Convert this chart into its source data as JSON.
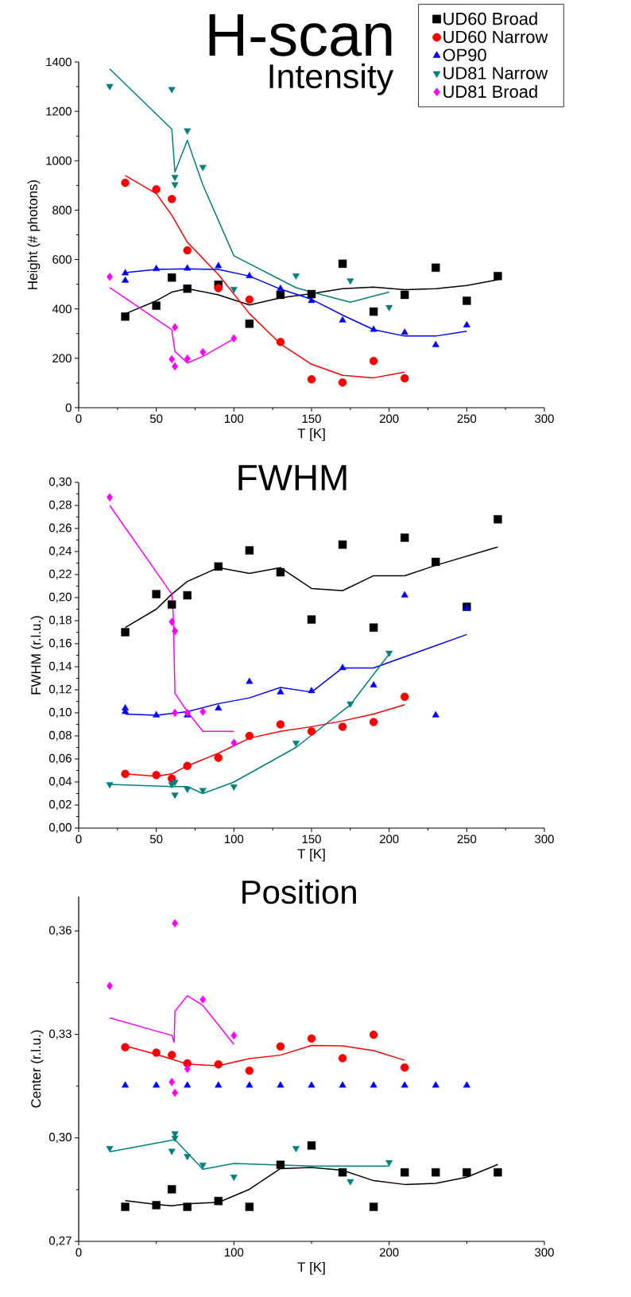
{
  "chart_data": [
    {
      "type": "scatter",
      "title": "H-scan",
      "subtitle": "Intensity",
      "xlabel": "T [K]",
      "ylabel": "Height (# photons)",
      "xlim": [
        0,
        300
      ],
      "ylim": [
        0,
        1400
      ],
      "xticks": [
        0,
        50,
        100,
        150,
        200,
        250,
        300
      ],
      "yticks": [
        0,
        200,
        400,
        600,
        800,
        1000,
        1200,
        1400
      ],
      "legend": "top right",
      "series": [
        {
          "name": "UD60 Broad",
          "color": "#000000",
          "marker": "square",
          "x": [
            30,
            50,
            60,
            70,
            90,
            110,
            130,
            150,
            170,
            190,
            210,
            230,
            250,
            270
          ],
          "values": [
            369,
            413,
            527,
            482,
            498,
            340,
            457,
            460,
            583,
            389,
            457,
            567,
            433,
            533
          ]
        },
        {
          "name": "UD60 Narrow",
          "color": "#ff0000",
          "marker": "circle",
          "x": [
            30,
            50,
            60,
            70,
            90,
            110,
            130,
            150,
            170,
            190,
            210
          ],
          "values": [
            911,
            884,
            845,
            637,
            484,
            438,
            266,
            115,
            102,
            189,
            119
          ]
        },
        {
          "name": "OP90",
          "color": "#0000ff",
          "marker": "triangle",
          "x": [
            30,
            30,
            50,
            70,
            90,
            110,
            130,
            150,
            170,
            190,
            210,
            230,
            250
          ],
          "values": [
            545,
            515,
            562,
            564,
            574,
            533,
            482,
            433,
            354,
            316,
            304,
            254,
            334
          ]
        },
        {
          "name": "UD81 Narrow",
          "color": "#008080",
          "marker": "triangle-down",
          "x": [
            20,
            60,
            62,
            62,
            70,
            80,
            100,
            140,
            175,
            200
          ],
          "values": [
            1302,
            1290,
            934,
            904,
            1122,
            974,
            480,
            535,
            515,
            407
          ]
        },
        {
          "name": "UD81 Broad",
          "color": "#ff00ff",
          "marker": "diamond",
          "x": [
            20,
            60,
            62,
            62,
            70,
            80,
            100
          ],
          "values": [
            530,
            196,
            326,
            167,
            199,
            225,
            281
          ]
        },
        {
          "type": "line",
          "color": "#000000",
          "marker": "none",
          "x": [
            30,
            50,
            60,
            70,
            90,
            110,
            130,
            150,
            170,
            190,
            210,
            230,
            250,
            270
          ],
          "values": [
            380,
            433,
            468,
            482,
            457,
            416,
            445,
            462,
            482,
            488,
            478,
            482,
            495,
            518
          ]
        },
        {
          "type": "line",
          "color": "#ff0000",
          "marker": "none",
          "x": [
            30,
            50,
            60,
            70,
            90,
            110,
            130,
            150,
            170,
            190,
            210
          ],
          "values": [
            940,
            867,
            779,
            670,
            539,
            381,
            258,
            176,
            131,
            121,
            144
          ]
        },
        {
          "type": "line",
          "color": "#0000ff",
          "marker": "none",
          "x": [
            30,
            50,
            70,
            90,
            110,
            130,
            150,
            170,
            190,
            210,
            230,
            250
          ],
          "values": [
            547,
            560,
            562,
            560,
            533,
            480,
            439,
            375,
            316,
            290,
            290,
            310
          ]
        },
        {
          "type": "line",
          "color": "#008080",
          "marker": "none",
          "x": [
            20,
            60,
            62,
            70,
            80,
            100,
            140,
            150,
            175,
            200
          ],
          "values": [
            1372,
            1128,
            954,
            1083,
            902,
            615,
            486,
            468,
            427,
            468
          ]
        },
        {
          "type": "line",
          "color": "#ff00ff",
          "marker": "none",
          "x": [
            20,
            60,
            62,
            70,
            80,
            100
          ],
          "values": [
            486,
            316,
            228,
            181,
            208,
            279
          ]
        }
      ]
    },
    {
      "type": "scatter",
      "title": "FWHM",
      "xlabel": "T [K]",
      "ylabel": "FWHM (r.l.u.)",
      "xlim": [
        0,
        300
      ],
      "ylim": [
        0,
        0.3
      ],
      "xticks": [
        0,
        50,
        100,
        150,
        200,
        250,
        300
      ],
      "yticks": [
        {
          "value": 0,
          "label": "0,00"
        },
        {
          "value": 0.02,
          "label": "0,02"
        },
        {
          "value": 0.04,
          "label": "0,04"
        },
        {
          "value": 0.06,
          "label": "0,06"
        },
        {
          "value": 0.08,
          "label": "0,08"
        },
        {
          "value": 0.1,
          "label": "0,10"
        },
        {
          "value": 0.12,
          "label": "0,12"
        },
        {
          "value": 0.14,
          "label": "0,14"
        },
        {
          "value": 0.16,
          "label": "0,16"
        },
        {
          "value": 0.18,
          "label": "0,18"
        },
        {
          "value": 0.2,
          "label": "0,20"
        },
        {
          "value": 0.22,
          "label": "0,22"
        },
        {
          "value": 0.24,
          "label": "0,24"
        },
        {
          "value": 0.26,
          "label": "0,26"
        },
        {
          "value": 0.28,
          "label": "0,28"
        },
        {
          "value": 0.3,
          "label": "0,30"
        }
      ],
      "series": [
        {
          "color": "#000000",
          "marker": "square",
          "x": [
            30,
            50,
            60,
            70,
            90,
            110,
            130,
            150,
            170,
            190,
            210,
            230,
            250,
            270
          ],
          "values": [
            0.17,
            0.203,
            0.194,
            0.202,
            0.227,
            0.241,
            0.222,
            0.181,
            0.246,
            0.174,
            0.252,
            0.231,
            0.192,
            0.268
          ]
        },
        {
          "color": "#ff0000",
          "marker": "circle",
          "x": [
            30,
            50,
            60,
            70,
            90,
            110,
            130,
            150,
            170,
            190,
            210
          ],
          "values": [
            0.047,
            0.046,
            0.043,
            0.054,
            0.061,
            0.08,
            0.09,
            0.084,
            0.088,
            0.092,
            0.114
          ]
        },
        {
          "color": "#0000ff",
          "marker": "triangle",
          "x": [
            30,
            30,
            50,
            70,
            90,
            110,
            130,
            150,
            170,
            190,
            210,
            230,
            250
          ],
          "values": [
            0.104,
            0.101,
            0.098,
            0.098,
            0.104,
            0.127,
            0.118,
            0.119,
            0.139,
            0.124,
            0.202,
            0.098,
            0.191
          ]
        },
        {
          "color": "#008080",
          "marker": "triangle-down",
          "x": [
            20,
            60,
            62,
            62,
            70,
            80,
            100,
            140,
            175,
            200
          ],
          "values": [
            0.038,
            0.038,
            0.04,
            0.029,
            0.034,
            0.033,
            0.036,
            0.074,
            0.108,
            0.152
          ]
        },
        {
          "color": "#ff00ff",
          "marker": "diamond",
          "x": [
            20,
            60,
            62,
            62,
            70,
            80,
            100
          ],
          "values": [
            0.287,
            0.179,
            0.171,
            0.1,
            0.1,
            0.101,
            0.074
          ]
        },
        {
          "type": "line",
          "color": "#000000",
          "marker": "none",
          "x": [
            30,
            50,
            60,
            70,
            90,
            110,
            130,
            150,
            170,
            190,
            210,
            230,
            270
          ],
          "values": [
            0.174,
            0.19,
            0.203,
            0.214,
            0.226,
            0.221,
            0.226,
            0.208,
            0.206,
            0.219,
            0.219,
            0.228,
            0.244
          ]
        },
        {
          "type": "line",
          "color": "#ff0000",
          "marker": "none",
          "x": [
            30,
            50,
            60,
            70,
            90,
            110,
            130,
            150,
            170,
            190,
            210
          ],
          "values": [
            0.047,
            0.045,
            0.047,
            0.054,
            0.065,
            0.078,
            0.084,
            0.088,
            0.093,
            0.099,
            0.107
          ]
        },
        {
          "type": "line",
          "color": "#0000ff",
          "marker": "none",
          "x": [
            30,
            50,
            70,
            90,
            110,
            130,
            150,
            170,
            190,
            250
          ],
          "values": [
            0.099,
            0.098,
            0.101,
            0.108,
            0.113,
            0.122,
            0.118,
            0.139,
            0.139,
            0.168
          ]
        },
        {
          "type": "line",
          "color": "#008080",
          "marker": "none",
          "x": [
            20,
            60,
            70,
            80,
            100,
            140,
            175,
            200
          ],
          "values": [
            0.038,
            0.036,
            0.036,
            0.03,
            0.04,
            0.07,
            0.107,
            0.151
          ]
        },
        {
          "type": "line",
          "color": "#ff00ff",
          "marker": "none",
          "x": [
            20,
            60,
            61,
            62,
            70,
            80,
            100
          ],
          "values": [
            0.28,
            0.203,
            0.183,
            0.117,
            0.101,
            0.084,
            0.084
          ]
        }
      ]
    },
    {
      "type": "scatter",
      "title": "Position",
      "xlabel": "T [K]",
      "ylabel": "Center (r.l.u.)",
      "xlim": [
        0,
        300
      ],
      "ylim": [
        0.27,
        0.37
      ],
      "xticks": [
        0,
        100,
        200,
        300
      ],
      "yticks": [
        {
          "value": 0.27,
          "label": "0,27"
        },
        {
          "value": 0.3,
          "label": "0,30"
        },
        {
          "value": 0.33,
          "label": "0,33"
        },
        {
          "value": 0.36,
          "label": "0,36"
        }
      ],
      "series": [
        {
          "color": "#000000",
          "marker": "square",
          "x": [
            30,
            50,
            60,
            70,
            90,
            110,
            130,
            150,
            170,
            190,
            210,
            230,
            250,
            270
          ],
          "values": [
            0.28,
            0.2805,
            0.2851,
            0.28,
            0.2817,
            0.28,
            0.2922,
            0.2978,
            0.29,
            0.28,
            0.29,
            0.29,
            0.29,
            0.29
          ]
        },
        {
          "color": "#ff0000",
          "marker": "circle",
          "x": [
            30,
            50,
            60,
            70,
            90,
            110,
            130,
            150,
            170,
            190,
            210
          ],
          "values": [
            0.3263,
            0.3247,
            0.324,
            0.3216,
            0.3213,
            0.3195,
            0.3265,
            0.3288,
            0.3231,
            0.3299,
            0.3204
          ]
        },
        {
          "color": "#0000ff",
          "marker": "triangle",
          "x": [
            30,
            50,
            70,
            90,
            110,
            130,
            150,
            170,
            190,
            210,
            230,
            250
          ],
          "values": [
            0.3152,
            0.3152,
            0.3152,
            0.3152,
            0.3152,
            0.3152,
            0.3152,
            0.3152,
            0.3152,
            0.3152,
            0.3152,
            0.3152
          ]
        },
        {
          "color": "#008080",
          "marker": "triangle-down",
          "x": [
            20,
            60,
            62,
            62,
            70,
            80,
            100,
            140,
            175,
            200
          ],
          "values": [
            0.297,
            0.2962,
            0.3013,
            0.3,
            0.2947,
            0.2922,
            0.2887,
            0.297,
            0.2874,
            0.2929
          ]
        },
        {
          "color": "#ff00ff",
          "marker": "diamond",
          "x": [
            20,
            60,
            62,
            62,
            70,
            80,
            100
          ],
          "values": [
            0.3441,
            0.3162,
            0.3622,
            0.3131,
            0.32,
            0.3401,
            0.3297
          ]
        },
        {
          "type": "line",
          "color": "#000000",
          "marker": "none",
          "x": [
            30,
            50,
            60,
            70,
            90,
            110,
            130,
            150,
            170,
            190,
            210,
            230,
            250,
            270
          ],
          "values": [
            0.2818,
            0.2807,
            0.2803,
            0.2809,
            0.2813,
            0.2851,
            0.2911,
            0.2914,
            0.2906,
            0.2876,
            0.2865,
            0.2868,
            0.2886,
            0.2923
          ]
        },
        {
          "type": "line",
          "color": "#ff0000",
          "marker": "none",
          "x": [
            30,
            50,
            60,
            70,
            90,
            110,
            130,
            150,
            170,
            190,
            210
          ],
          "values": [
            0.3267,
            0.3242,
            0.3228,
            0.3214,
            0.3209,
            0.323,
            0.324,
            0.3268,
            0.3267,
            0.3253,
            0.3225
          ]
        },
        {
          "type": "line",
          "color": "#008080",
          "marker": "none",
          "x": [
            20,
            60,
            62,
            80,
            100,
            150,
            200
          ],
          "values": [
            0.296,
            0.2993,
            0.2995,
            0.2909,
            0.2926,
            0.2918,
            0.2918
          ]
        },
        {
          "type": "line",
          "color": "#ff00ff",
          "marker": "none",
          "x": [
            20,
            60,
            61.5,
            62,
            70,
            80,
            100
          ],
          "values": [
            0.3348,
            0.3297,
            0.3277,
            0.3367,
            0.3412,
            0.3384,
            0.3271
          ]
        }
      ]
    }
  ]
}
